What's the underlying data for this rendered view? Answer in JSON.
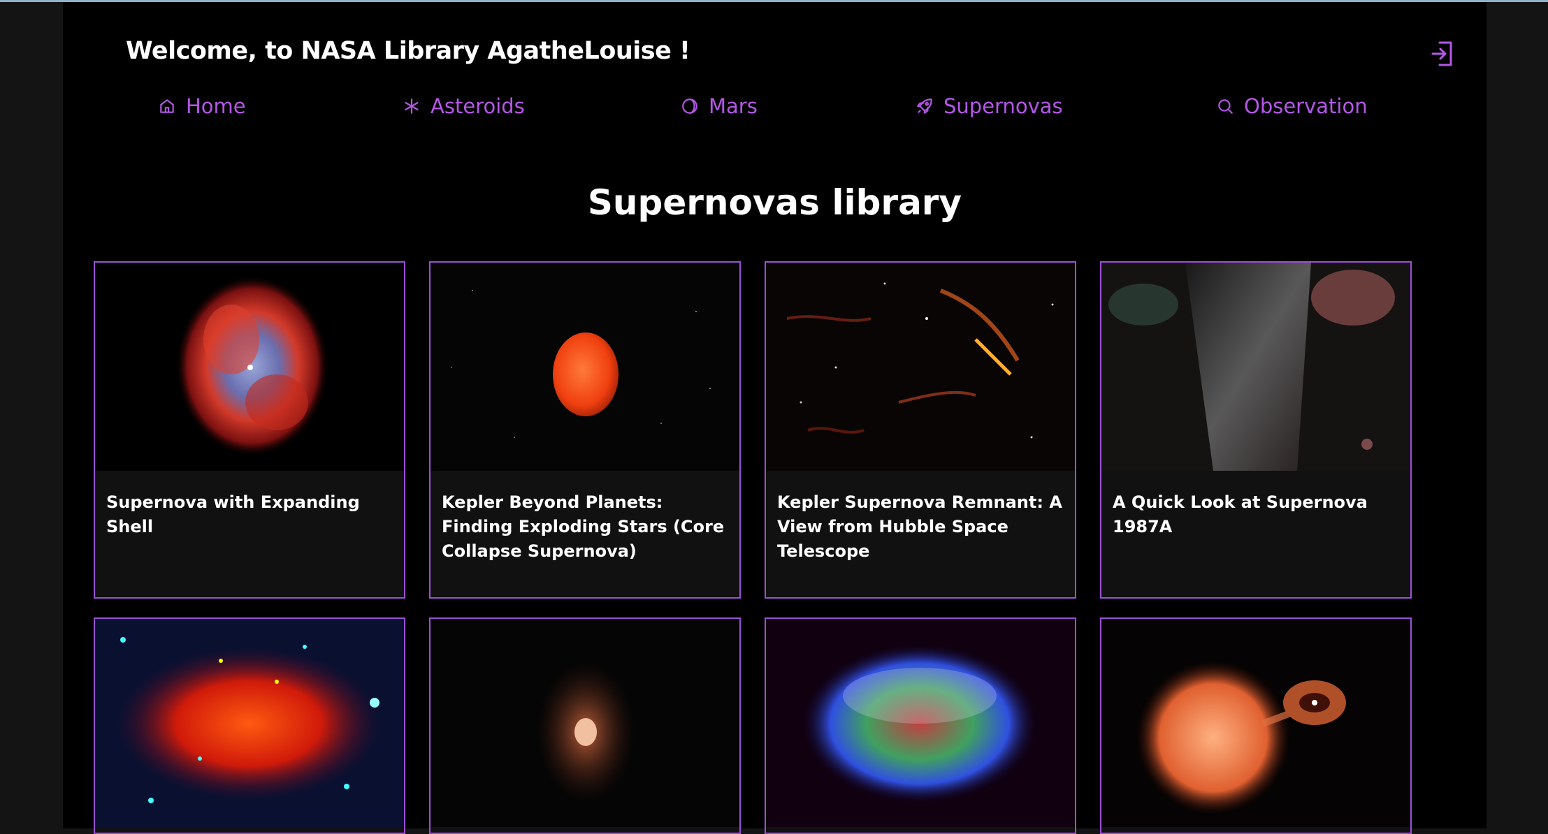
{
  "header": {
    "welcome": "Welcome, to NASA Library AgatheLouise !",
    "logout_icon": "logout-icon"
  },
  "nav": [
    {
      "label": "Home",
      "icon": "home-icon"
    },
    {
      "label": "Asteroids",
      "icon": "asterisk-icon"
    },
    {
      "label": "Mars",
      "icon": "moon-icon"
    },
    {
      "label": "Supernovas",
      "icon": "rocket-icon"
    },
    {
      "label": "Observation",
      "icon": "search-icon"
    }
  ],
  "page_title": "Supernovas library",
  "cards": [
    {
      "title": "Supernova with Expanding Shell"
    },
    {
      "title": "Kepler Beyond Planets: Finding Exploding Stars (Core Collapse Supernova)"
    },
    {
      "title": "Kepler Supernova Remnant: A View from Hubble Space Telescope"
    },
    {
      "title": "A Quick Look at Supernova 1987A"
    },
    {
      "title": ""
    },
    {
      "title": ""
    },
    {
      "title": ""
    },
    {
      "title": ""
    }
  ],
  "colors": {
    "accent": "#b557e8",
    "card_border": "#9b4fd6",
    "background": "#000000",
    "card_bg": "#111111"
  }
}
